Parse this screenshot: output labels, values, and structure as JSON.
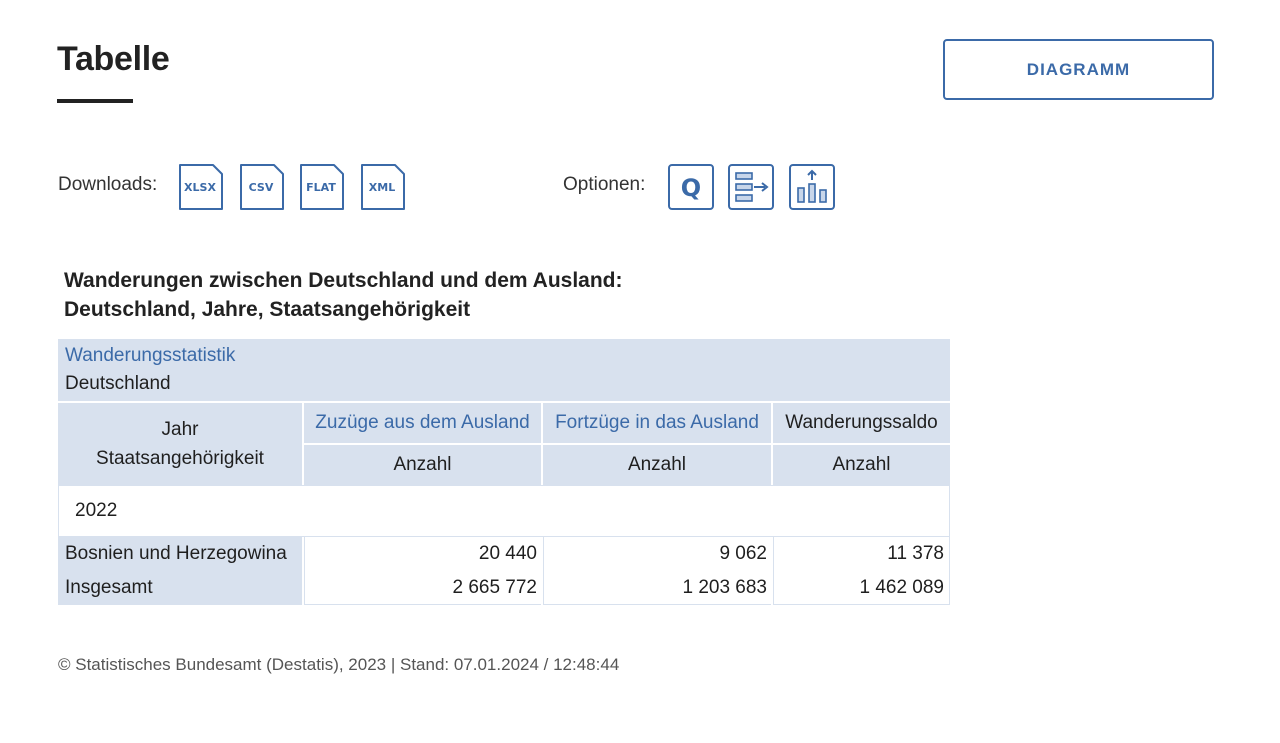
{
  "header": {
    "title": "Tabelle",
    "diagram_button": "DIAGRAMM"
  },
  "toolbar": {
    "downloads_label": "Downloads:",
    "downloads": [
      "XLSX",
      "CSV",
      "FLAT",
      "XML"
    ],
    "options_label": "Optionen:",
    "options_icons": [
      "q-icon",
      "layout-icon",
      "sort-chart-icon"
    ],
    "options_q_text": "Q"
  },
  "table": {
    "title_line1": "Wanderungen zwischen Deutschland und dem Ausland:",
    "title_line2": "Deutschland, Jahre, Staatsangehörigkeit",
    "source": "Wanderungsstatistik",
    "region": "Deutschland",
    "row_header_line1": "Jahr",
    "row_header_line2": "Staatsangehörigkeit",
    "columns": [
      "Zuzüge aus dem Ausland",
      "Fortzüge in das Ausland",
      "Wanderungssaldo"
    ],
    "unit": "Anzahl",
    "year": "2022",
    "rows": [
      {
        "label": "Bosnien und Herzegowina",
        "values": [
          "20 440",
          "9 062",
          "11 378"
        ]
      },
      {
        "label": "Insgesamt",
        "values": [
          "2 665 772",
          "1 203 683",
          "1 462 089"
        ]
      }
    ]
  },
  "footer": {
    "text": "© Statistisches Bundesamt (Destatis), 2023 | Stand: 07.01.2024  /  12:48:44"
  },
  "colors": {
    "accent": "#3b6aa8",
    "header_bg": "#d8e1ee"
  }
}
